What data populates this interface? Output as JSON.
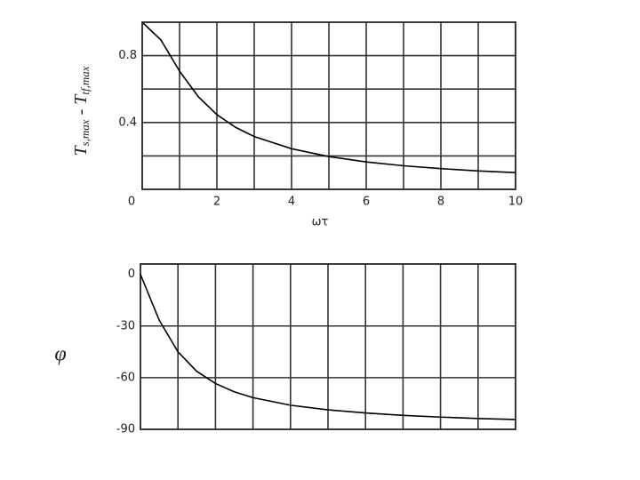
{
  "chart_data": [
    {
      "type": "line",
      "xlabel": "ωτ",
      "ylabel": {
        "t1": "T",
        "s1": "s,max",
        "mid": " - T",
        "s2": "tf,max"
      },
      "x": [
        0,
        0.5,
        1,
        1.5,
        2,
        2.5,
        3,
        4,
        5,
        6,
        7,
        8,
        9,
        10
      ],
      "series": [
        {
          "color": "#000000",
          "values": [
            1,
            0.894,
            0.707,
            0.555,
            0.447,
            0.371,
            0.316,
            0.243,
            0.196,
            0.164,
            0.141,
            0.124,
            0.11,
            0.1
          ]
        }
      ],
      "xlim": [
        0,
        10
      ],
      "ylim": [
        0,
        1
      ],
      "xticks": [
        0,
        2,
        4,
        6,
        8,
        10
      ],
      "yticks": [
        0.4,
        0.8
      ],
      "xgrid": [
        1,
        2,
        3,
        4,
        5,
        6,
        7,
        8,
        9
      ],
      "ygrid": [
        0.2,
        0.4,
        0.6,
        0.8
      ]
    },
    {
      "type": "line",
      "ylabel": "φ",
      "x": [
        0,
        0.5,
        1,
        1.5,
        2,
        2.5,
        3,
        4,
        5,
        6,
        7,
        8,
        9,
        10
      ],
      "series": [
        {
          "color": "#000000",
          "values": [
            0,
            -26.6,
            -45,
            -56.3,
            -63.4,
            -68.2,
            -71.6,
            -76.0,
            -78.7,
            -80.5,
            -81.9,
            -82.9,
            -83.7,
            -84.3
          ]
        }
      ],
      "xlim": [
        0,
        10
      ],
      "ylim": [
        -90,
        6
      ],
      "yticks": [
        0,
        -30,
        -60,
        -90
      ],
      "xgrid": [
        1,
        2,
        3,
        4,
        5,
        6,
        7,
        8,
        9
      ],
      "ygrid": [
        -30,
        -60
      ]
    }
  ]
}
